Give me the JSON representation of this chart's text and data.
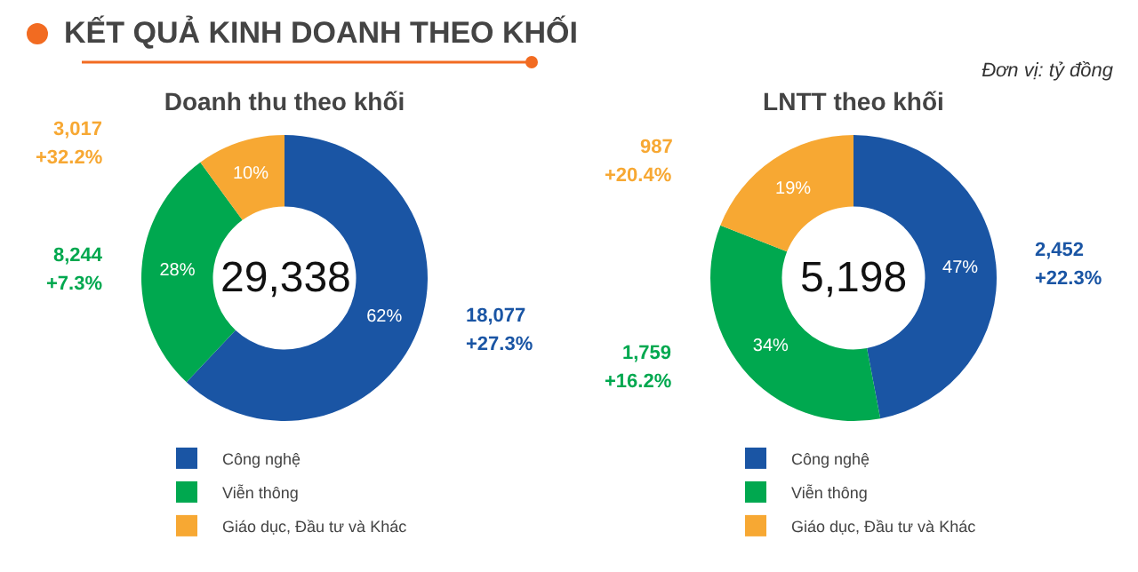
{
  "chart_data": [
    {
      "type": "other",
      "title": "KẾT QUẢ KINH DOANH THEO KHỐI",
      "annotations": [
        "Đơn vị: tỷ đồng"
      ]
    },
    {
      "type": "donut",
      "title": "Doanh thu theo khối",
      "categories": [
        "Công nghệ",
        "Viễn thông",
        "Giáo dục, Đầu tư và Khác"
      ],
      "values": [
        62,
        28,
        10
      ],
      "colors": [
        "#1a55a4",
        "#00a84f",
        "#f7a833"
      ],
      "value_labels": [
        "62%",
        "28%",
        "10%"
      ],
      "legend": "bottom",
      "annotations": [
        "29,338",
        {
          "text": "18,077",
          "x": "Công nghệ"
        },
        {
          "text": "+27.3%",
          "x": "Công nghệ"
        },
        {
          "text": "8,244",
          "x": "Viễn thông"
        },
        {
          "text": "+7.3%",
          "x": "Viễn thông"
        },
        {
          "text": "3,017",
          "x": "Giáo dục, Đầu tư và Khác"
        },
        {
          "text": "+32.2%",
          "x": "Giáo dục, Đầu tư và Khác"
        }
      ]
    },
    {
      "type": "donut",
      "title": "LNTT theo khối",
      "categories": [
        "Công nghệ",
        "Viễn thông",
        "Giáo dục, Đầu tư và Khác"
      ],
      "values": [
        47,
        34,
        19
      ],
      "colors": [
        "#1a55a4",
        "#00a84f",
        "#f7a833"
      ],
      "value_labels": [
        "47%",
        "34%",
        "19%"
      ],
      "legend": "bottom",
      "annotations": [
        "5,198",
        {
          "text": "2,452",
          "x": "Công nghệ"
        },
        {
          "text": "+22.3%",
          "x": "Công nghệ"
        },
        {
          "text": "1,759",
          "x": "Viễn thông"
        },
        {
          "text": "+16.2%",
          "x": "Viễn thông"
        },
        {
          "text": "987",
          "x": "Giáo dục, Đầu tư và Khác"
        },
        {
          "text": "+20.4%",
          "x": "Giáo dục, Đầu tư và Khác"
        }
      ]
    }
  ]
}
